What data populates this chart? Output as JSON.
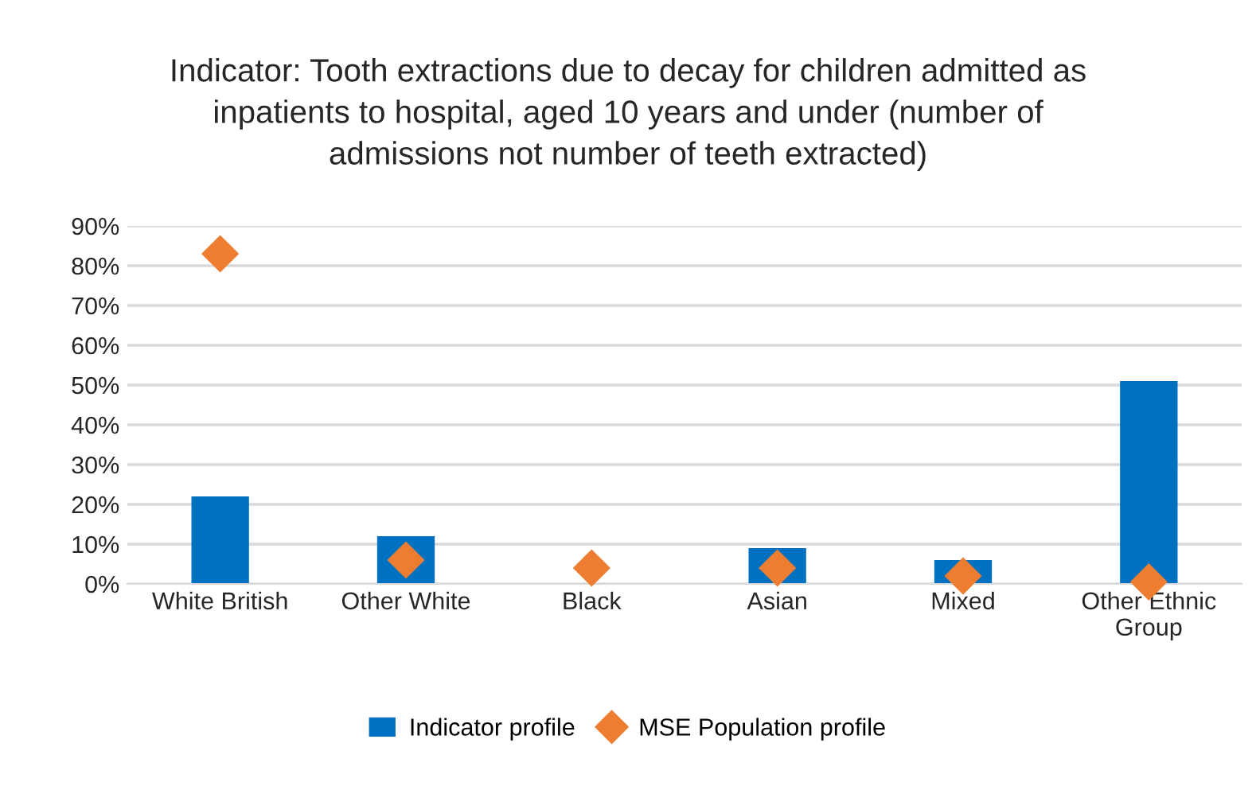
{
  "chart_data": {
    "type": "bar",
    "title": "Indicator: Tooth extractions due to decay for children admitted as\ninpatients to hospital, aged 10 years and under (number of\nadmissions not number of teeth extracted)",
    "categories": [
      "White British",
      "Other White",
      "Black",
      "Asian",
      "Mixed",
      "Other Ethnic\nGroup"
    ],
    "series": [
      {
        "name": "Indicator profile",
        "type": "bar",
        "color": "#0070c0",
        "values": [
          22,
          12,
          0,
          9,
          6,
          51
        ]
      },
      {
        "name": "MSE Population profile",
        "type": "scatter",
        "color": "#ed7d31",
        "marker": "diamond",
        "values": [
          83,
          6,
          4,
          4,
          2,
          0.5
        ]
      }
    ],
    "ylim": [
      0,
      90
    ],
    "yticks": [
      {
        "value": 0,
        "label": "0%"
      },
      {
        "value": 10,
        "label": "10%"
      },
      {
        "value": 20,
        "label": "20%"
      },
      {
        "value": 30,
        "label": "30%"
      },
      {
        "value": 40,
        "label": "40%"
      },
      {
        "value": 50,
        "label": "50%"
      },
      {
        "value": 60,
        "label": "60%"
      },
      {
        "value": 70,
        "label": "70%"
      },
      {
        "value": 80,
        "label": "80%"
      },
      {
        "value": 90,
        "label": "90%"
      }
    ],
    "grid": "y",
    "legend": "bottom"
  }
}
